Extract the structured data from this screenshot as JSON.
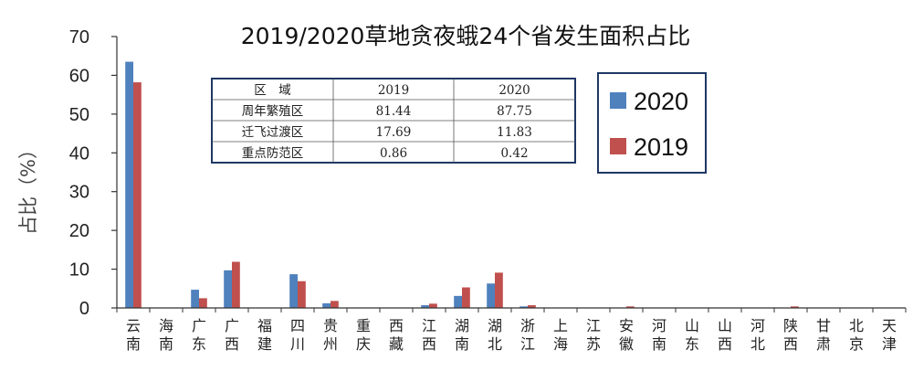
{
  "chart_data": {
    "type": "bar",
    "title": "2019/2020草地贪夜蛾24个省发生面积占比",
    "ylabel": "占比（%）",
    "xlabel": "",
    "ylim": [
      0,
      70
    ],
    "yticks": [
      0,
      10,
      20,
      30,
      40,
      50,
      60,
      70
    ],
    "grid": false,
    "legend_position": "top-right",
    "categories": [
      "云南",
      "海南",
      "广东",
      "广西",
      "福建",
      "四川",
      "贵州",
      "重庆",
      "西藏",
      "江西",
      "湖南",
      "湖北",
      "浙江",
      "上海",
      "江苏",
      "安徽",
      "河南",
      "山东",
      "山西",
      "河北",
      "陕西",
      "甘肃",
      "北京",
      "天津"
    ],
    "series": [
      {
        "name": "2020",
        "color": "#4f81bd",
        "values": [
          63.5,
          0,
          4.7,
          9.7,
          0,
          8.7,
          1.2,
          0,
          0,
          0.7,
          3.1,
          6.3,
          0.4,
          0,
          0,
          0.1,
          0,
          0,
          0,
          0,
          0.1,
          0,
          0,
          0
        ]
      },
      {
        "name": "2019",
        "color": "#c0504d",
        "values": [
          58.2,
          0,
          2.5,
          11.9,
          0,
          6.9,
          1.8,
          0,
          0,
          1.1,
          5.3,
          9.1,
          0.7,
          0,
          0,
          0.4,
          0,
          0,
          0,
          0,
          0.4,
          0,
          0,
          0
        ]
      }
    ],
    "table": {
      "header": [
        "区　域",
        "2019",
        "2020"
      ],
      "rows": [
        [
          "周年繁殖区",
          "81.44",
          "87.75"
        ],
        [
          "迁飞过渡区",
          "17.69",
          "11.83"
        ],
        [
          "重点防范区",
          "0.86",
          "0.42"
        ]
      ]
    }
  }
}
